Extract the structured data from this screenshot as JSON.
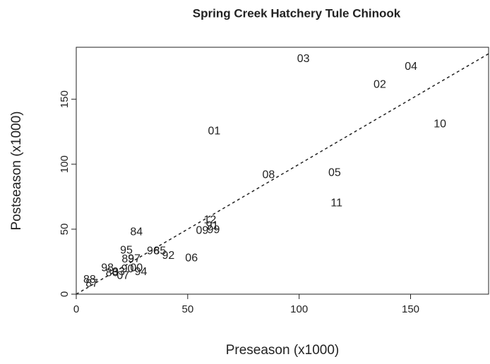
{
  "chart_data": {
    "type": "scatter",
    "title": "Spring Creek Hatchery Tule Chinook",
    "xlabel": "Preseason (x1000)",
    "ylabel": "Postseason (x1000)",
    "labels": [
      "03",
      "04",
      "02",
      "10",
      "01",
      "08",
      "05",
      "11",
      "12",
      "91",
      "09",
      "99",
      "84",
      "95",
      "96",
      "85",
      "92",
      "06",
      "89",
      "97",
      "98",
      "86",
      "93",
      "90",
      "00",
      "94",
      "07",
      "88",
      "87"
    ],
    "x": [
      101.9,
      150.2,
      136.2,
      163.2,
      61.9,
      86.3,
      115.9,
      116.8,
      60,
      61,
      56.5,
      61.6,
      27,
      22.5,
      34.5,
      37.5,
      41.3,
      51.7,
      23.2,
      26,
      14,
      16,
      19,
      23,
      27,
      29,
      21,
      6,
      7
    ],
    "values": [
      181,
      175,
      161,
      130.6,
      125.2,
      91.6,
      93.2,
      69.9,
      56.9,
      52.6,
      48.8,
      49.3,
      47.7,
      33.6,
      33,
      33,
      29.3,
      27.6,
      26.6,
      27,
      20,
      16,
      17,
      19,
      20,
      17,
      14,
      11,
      8
    ],
    "xlim": [
      0,
      185
    ],
    "ylim": [
      0,
      190
    ],
    "xticks": [
      0,
      50,
      100,
      150
    ],
    "yticks": [
      0,
      50,
      100,
      150
    ],
    "identity_line": true
  }
}
